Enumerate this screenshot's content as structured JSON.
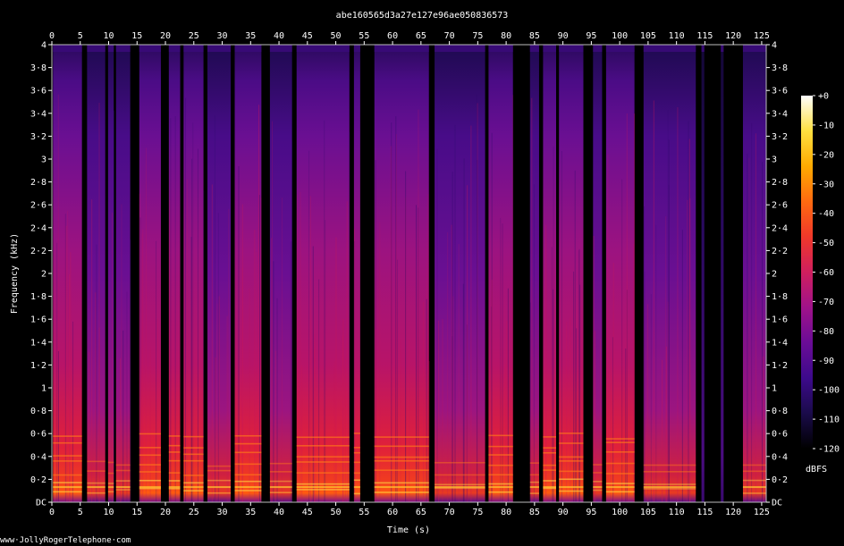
{
  "chart_data": {
    "type": "heatmap",
    "title": "abe160565d3a27e127e96ae050836573",
    "xlabel": "Time (s)",
    "ylabel": "Frequency (kHz)",
    "xlim": [
      0,
      125.8
    ],
    "ylim": [
      0,
      4
    ],
    "x_ticks": [
      "0",
      "5",
      "10",
      "15",
      "20",
      "25",
      "30",
      "35",
      "40",
      "45",
      "50",
      "55",
      "60",
      "65",
      "70",
      "75",
      "80",
      "85",
      "90",
      "95",
      "100",
      "105",
      "110",
      "115",
      "120",
      "125"
    ],
    "y_ticks": [
      "DC",
      "0·2",
      "0·4",
      "0·6",
      "0·8",
      "1",
      "1·2",
      "1·4",
      "1·6",
      "1·8",
      "2",
      "2·2",
      "2·4",
      "2·6",
      "2·8",
      "3",
      "3·2",
      "3·4",
      "3·6",
      "3·8",
      "4"
    ],
    "colorbar": {
      "label": "dBFS",
      "range": [
        -120,
        0
      ],
      "ticks": [
        "+0",
        "-10",
        "-20",
        "-30",
        "-40",
        "-50",
        "-60",
        "-70",
        "-80",
        "-90",
        "-100",
        "-110",
        "-120"
      ],
      "colors": [
        "#000000",
        "#1a0b4a",
        "#3d0a8c",
        "#6a0c96",
        "#a0128a",
        "#cf1f5e",
        "#f0382a",
        "#ff6a10",
        "#ffaa00",
        "#ffe040",
        "#ffffff"
      ]
    },
    "silence_intervals_s": [
      [
        -0.2,
        0.2
      ],
      [
        5.3,
        6.2
      ],
      [
        9.4,
        9.9
      ],
      [
        10.9,
        11.3
      ],
      [
        13.8,
        15.4
      ],
      [
        19.2,
        20.6
      ],
      [
        22.6,
        23.2
      ],
      [
        26.7,
        27.4
      ],
      [
        31.5,
        32.2
      ],
      [
        36.9,
        38.4
      ],
      [
        42.3,
        43.1
      ],
      [
        52.4,
        53.2
      ],
      [
        54.3,
        56.8
      ],
      [
        66.4,
        67.4
      ],
      [
        76.3,
        76.9
      ],
      [
        81.2,
        84.2
      ],
      [
        85.8,
        86.5
      ],
      [
        88.8,
        89.3
      ],
      [
        93.6,
        95.3
      ],
      [
        96.9,
        97.6
      ],
      [
        102.6,
        104.2
      ],
      [
        113.4,
        114.4
      ],
      [
        114.9,
        117.8
      ],
      [
        118.3,
        121.7
      ]
    ],
    "activity_by_segment": [
      {
        "range_s": [
          0.2,
          5.3
        ],
        "level": "strong"
      },
      {
        "range_s": [
          6.2,
          9.4
        ],
        "level": "medium"
      },
      {
        "range_s": [
          9.9,
          10.9
        ],
        "level": "medium"
      },
      {
        "range_s": [
          11.3,
          13.8
        ],
        "level": "medium"
      },
      {
        "range_s": [
          15.4,
          19.2
        ],
        "level": "strong"
      },
      {
        "range_s": [
          20.6,
          22.6
        ],
        "level": "strong"
      },
      {
        "range_s": [
          23.2,
          26.7
        ],
        "level": "strong"
      },
      {
        "range_s": [
          27.4,
          31.5
        ],
        "level": "medium"
      },
      {
        "range_s": [
          32.2,
          36.9
        ],
        "level": "strong"
      },
      {
        "range_s": [
          38.4,
          42.3
        ],
        "level": "medium"
      },
      {
        "range_s": [
          43.1,
          52.4
        ],
        "level": "strong"
      },
      {
        "range_s": [
          53.2,
          54.3
        ],
        "level": "strong"
      },
      {
        "range_s": [
          56.8,
          66.4
        ],
        "level": "strong"
      },
      {
        "range_s": [
          67.4,
          76.3
        ],
        "level": "medium"
      },
      {
        "range_s": [
          76.9,
          81.2
        ],
        "level": "strong"
      },
      {
        "range_s": [
          84.2,
          85.8
        ],
        "level": "medium"
      },
      {
        "range_s": [
          86.5,
          88.8
        ],
        "level": "strong"
      },
      {
        "range_s": [
          89.3,
          93.6
        ],
        "level": "strong"
      },
      {
        "range_s": [
          95.3,
          96.9
        ],
        "level": "medium"
      },
      {
        "range_s": [
          97.6,
          102.6
        ],
        "level": "strong"
      },
      {
        "range_s": [
          104.2,
          113.4
        ],
        "level": "medium"
      },
      {
        "range_s": [
          114.4,
          114.9
        ],
        "level": "faint"
      },
      {
        "range_s": [
          117.8,
          118.3
        ],
        "level": "faint"
      },
      {
        "range_s": [
          121.7,
          125.8
        ],
        "level": "medium"
      }
    ]
  },
  "footer": {
    "credit": "www·JollyRogerTelephone·com"
  }
}
